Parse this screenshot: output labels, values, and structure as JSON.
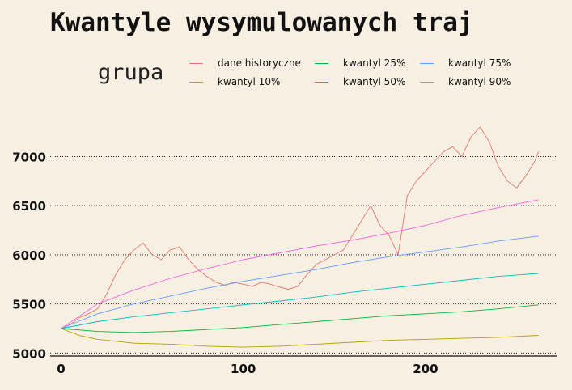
{
  "chart_data": {
    "type": "line",
    "title": "Kwantyle wysymulowanych traj",
    "xlabel": "",
    "ylabel": "",
    "legend_title": "grupa",
    "legend_position": "top",
    "grid": "horizontal dotted",
    "xlim": [
      -6,
      272
    ],
    "ylim": [
      4970,
      7440
    ],
    "x_ticks": [
      0,
      100,
      200
    ],
    "y_ticks": [
      5000,
      5500,
      6000,
      6500,
      7000
    ],
    "series": [
      {
        "name": "dane historyczne",
        "color": "#e3766c",
        "points": [
          [
            0,
            5250
          ],
          [
            5,
            5290
          ],
          [
            10,
            5360
          ],
          [
            15,
            5400
          ],
          [
            20,
            5450
          ],
          [
            25,
            5600
          ],
          [
            30,
            5800
          ],
          [
            35,
            5950
          ],
          [
            40,
            6050
          ],
          [
            45,
            6120
          ],
          [
            50,
            6000
          ],
          [
            55,
            5950
          ],
          [
            60,
            6050
          ],
          [
            65,
            6080
          ],
          [
            70,
            5950
          ],
          [
            75,
            5850
          ],
          [
            80,
            5780
          ],
          [
            85,
            5720
          ],
          [
            90,
            5690
          ],
          [
            95,
            5720
          ],
          [
            100,
            5700
          ],
          [
            105,
            5680
          ],
          [
            110,
            5720
          ],
          [
            115,
            5700
          ],
          [
            120,
            5670
          ],
          [
            125,
            5650
          ],
          [
            130,
            5680
          ],
          [
            135,
            5800
          ],
          [
            140,
            5900
          ],
          [
            145,
            5950
          ],
          [
            150,
            6000
          ],
          [
            155,
            6050
          ],
          [
            160,
            6200
          ],
          [
            165,
            6350
          ],
          [
            170,
            6500
          ],
          [
            175,
            6300
          ],
          [
            180,
            6200
          ],
          [
            185,
            6000
          ],
          [
            190,
            6600
          ],
          [
            195,
            6750
          ],
          [
            200,
            6850
          ],
          [
            205,
            6950
          ],
          [
            210,
            7050
          ],
          [
            215,
            7100
          ],
          [
            220,
            7000
          ],
          [
            225,
            7200
          ],
          [
            230,
            7300
          ],
          [
            235,
            7150
          ],
          [
            240,
            6900
          ],
          [
            245,
            6750
          ],
          [
            250,
            6680
          ],
          [
            255,
            6800
          ],
          [
            260,
            6950
          ],
          [
            262,
            7050
          ]
        ]
      },
      {
        "name": "kwantyl 10%",
        "color": "#b79f00",
        "points": [
          [
            0,
            5250
          ],
          [
            10,
            5180
          ],
          [
            20,
            5140
          ],
          [
            40,
            5100
          ],
          [
            60,
            5090
          ],
          [
            80,
            5070
          ],
          [
            100,
            5060
          ],
          [
            120,
            5070
          ],
          [
            140,
            5090
          ],
          [
            160,
            5110
          ],
          [
            180,
            5130
          ],
          [
            200,
            5140
          ],
          [
            220,
            5150
          ],
          [
            240,
            5160
          ],
          [
            262,
            5180
          ]
        ]
      },
      {
        "name": "kwantyl 25%",
        "color": "#00ba38",
        "points": [
          [
            0,
            5250
          ],
          [
            20,
            5220
          ],
          [
            40,
            5210
          ],
          [
            60,
            5220
          ],
          [
            80,
            5240
          ],
          [
            100,
            5260
          ],
          [
            120,
            5290
          ],
          [
            140,
            5320
          ],
          [
            160,
            5350
          ],
          [
            180,
            5380
          ],
          [
            200,
            5400
          ],
          [
            220,
            5420
          ],
          [
            240,
            5450
          ],
          [
            262,
            5490
          ]
        ]
      },
      {
        "name": "kwantyl 50%",
        "color": "#00bfc4",
        "points": [
          [
            0,
            5250
          ],
          [
            20,
            5320
          ],
          [
            40,
            5370
          ],
          [
            60,
            5410
          ],
          [
            80,
            5450
          ],
          [
            100,
            5490
          ],
          [
            120,
            5530
          ],
          [
            140,
            5570
          ],
          [
            160,
            5620
          ],
          [
            180,
            5660
          ],
          [
            200,
            5700
          ],
          [
            220,
            5740
          ],
          [
            240,
            5780
          ],
          [
            262,
            5810
          ]
        ]
      },
      {
        "name": "kwantyl 75%",
        "color": "#619cff",
        "points": [
          [
            0,
            5250
          ],
          [
            20,
            5400
          ],
          [
            40,
            5500
          ],
          [
            60,
            5580
          ],
          [
            80,
            5660
          ],
          [
            100,
            5730
          ],
          [
            120,
            5790
          ],
          [
            140,
            5850
          ],
          [
            160,
            5920
          ],
          [
            180,
            5980
          ],
          [
            200,
            6030
          ],
          [
            220,
            6080
          ],
          [
            240,
            6140
          ],
          [
            262,
            6190
          ]
        ]
      },
      {
        "name": "kwantyl 90%",
        "color": "#f564e3",
        "points": [
          [
            0,
            5250
          ],
          [
            20,
            5500
          ],
          [
            40,
            5640
          ],
          [
            60,
            5760
          ],
          [
            80,
            5860
          ],
          [
            100,
            5950
          ],
          [
            120,
            6020
          ],
          [
            140,
            6090
          ],
          [
            160,
            6150
          ],
          [
            180,
            6220
          ],
          [
            200,
            6300
          ],
          [
            220,
            6400
          ],
          [
            240,
            6480
          ],
          [
            262,
            6560
          ]
        ]
      }
    ]
  }
}
